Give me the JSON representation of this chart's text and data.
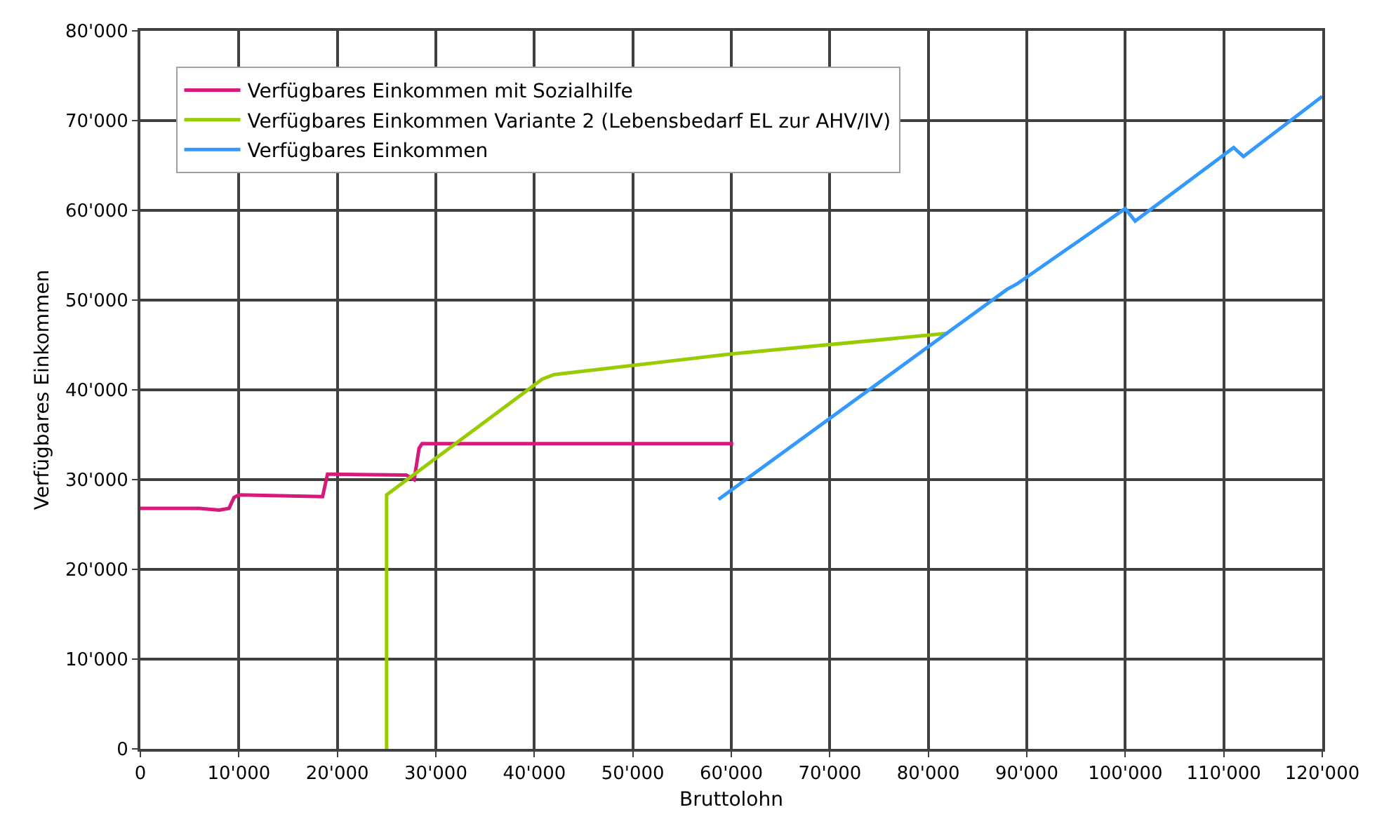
{
  "chart_data": {
    "type": "line",
    "xlabel": "Bruttolohn",
    "ylabel": "Verfügbares Einkommen",
    "xlim": [
      0,
      120000
    ],
    "ylim": [
      0,
      80000
    ],
    "xticks": [
      0,
      {
        "value": 10000,
        "label": "10'000"
      },
      {
        "value": 20000,
        "label": "20'000"
      },
      {
        "value": 30000,
        "label": "30'000"
      },
      {
        "value": 40000,
        "label": "40'000"
      },
      {
        "value": 50000,
        "label": "50'000"
      },
      {
        "value": 60000,
        "label": "60'000"
      },
      {
        "value": 70000,
        "label": "70'000"
      },
      {
        "value": 80000,
        "label": "80'000"
      },
      {
        "value": 90000,
        "label": "90'000"
      },
      {
        "value": 100000,
        "label": "100'000"
      },
      {
        "value": 110000,
        "label": "110'000"
      },
      {
        "value": 120000,
        "label": "120'000"
      }
    ],
    "yticks": [
      0,
      {
        "value": 10000,
        "label": "10'000"
      },
      {
        "value": 20000,
        "label": "20'000"
      },
      {
        "value": 30000,
        "label": "30'000"
      },
      {
        "value": 40000,
        "label": "40'000"
      },
      {
        "value": 50000,
        "label": "50'000"
      },
      {
        "value": 60000,
        "label": "60'000"
      },
      {
        "value": 70000,
        "label": "70'000"
      },
      {
        "value": 80000,
        "label": "80'000"
      }
    ],
    "grid": true,
    "legend": "top left",
    "marker": "none",
    "line_style": "solid",
    "series": [
      {
        "name": "Verfügbares Einkommen mit Sozialhilfe",
        "color": "#d6197a",
        "x": [
          0,
          6000,
          8000,
          9000,
          9500,
          10000,
          18500,
          19000,
          19500,
          27000,
          27800,
          28300,
          28600,
          60200
        ],
        "values": [
          26800,
          26800,
          26600,
          26800,
          28000,
          28300,
          28100,
          30600,
          30600,
          30500,
          30000,
          33500,
          34000,
          34000
        ]
      },
      {
        "name": "Verfügbares Einkommen Variante 2 (Lebensbedarf EL zur AHV/IV)",
        "color": "#99cc00",
        "x": [
          25000,
          25000,
          40800,
          42000,
          60000,
          82000
        ],
        "values": [
          0,
          28300,
          41200,
          41700,
          44000,
          46300
        ]
      },
      {
        "name": "Verfügbares Einkommen",
        "color": "#3399ff",
        "x": [
          58700,
          86500,
          88000,
          89000,
          100000,
          101000,
          111000,
          112000,
          120000
        ],
        "values": [
          27800,
          50000,
          51200,
          51800,
          60200,
          58800,
          67000,
          66000,
          72700
        ]
      }
    ]
  }
}
